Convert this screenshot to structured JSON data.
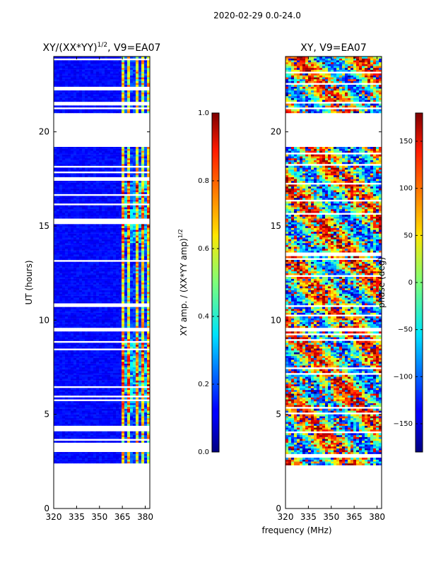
{
  "figure": {
    "suptitle": "2020-02-29 0.0-24.0",
    "shared_xlabel": "frequency (MHz)"
  },
  "chart_data": [
    {
      "type": "heatmap",
      "title": "XY/(XX*YY)",
      "title_exponent": "1/2",
      "title_suffix": ", V9=EA07",
      "xlabel": "",
      "ylabel": "UT (hours)",
      "xlim": [
        320,
        383
      ],
      "ylim": [
        0,
        24
      ],
      "xticks": [
        320,
        335,
        350,
        365,
        380
      ],
      "yticks": [
        0,
        5,
        10,
        15,
        20
      ],
      "data_extent_hours": [
        2.3,
        24
      ],
      "gap_hours": [
        19.3,
        21
      ],
      "colorbar": {
        "label": "XY amp. / (XX*YY amp)",
        "label_exponent": "1/2",
        "range": [
          0.0,
          1.0
        ],
        "ticks": [
          "0.0",
          "0.2",
          "0.4",
          "0.6",
          "0.8",
          "1.0"
        ],
        "colormap": "jet"
      }
    },
    {
      "type": "heatmap",
      "title": "XY, V9=EA07",
      "xlabel": "frequency (MHz)",
      "ylabel": "",
      "xlim": [
        320,
        383
      ],
      "ylim": [
        0,
        24
      ],
      "xticks": [
        320,
        335,
        350,
        365,
        380
      ],
      "yticks": [
        0,
        5,
        10,
        15,
        20
      ],
      "data_extent_hours": [
        2.3,
        24
      ],
      "gap_hours": [
        19.3,
        21
      ],
      "colorbar": {
        "label": "phase (deg)",
        "range": [
          -180,
          180
        ],
        "ticks": [
          "−150",
          "−100",
          "−50",
          "0",
          "50",
          "100",
          "150"
        ],
        "tick_values": [
          -150,
          -100,
          -50,
          0,
          50,
          100,
          150
        ],
        "colormap": "jet"
      }
    }
  ]
}
